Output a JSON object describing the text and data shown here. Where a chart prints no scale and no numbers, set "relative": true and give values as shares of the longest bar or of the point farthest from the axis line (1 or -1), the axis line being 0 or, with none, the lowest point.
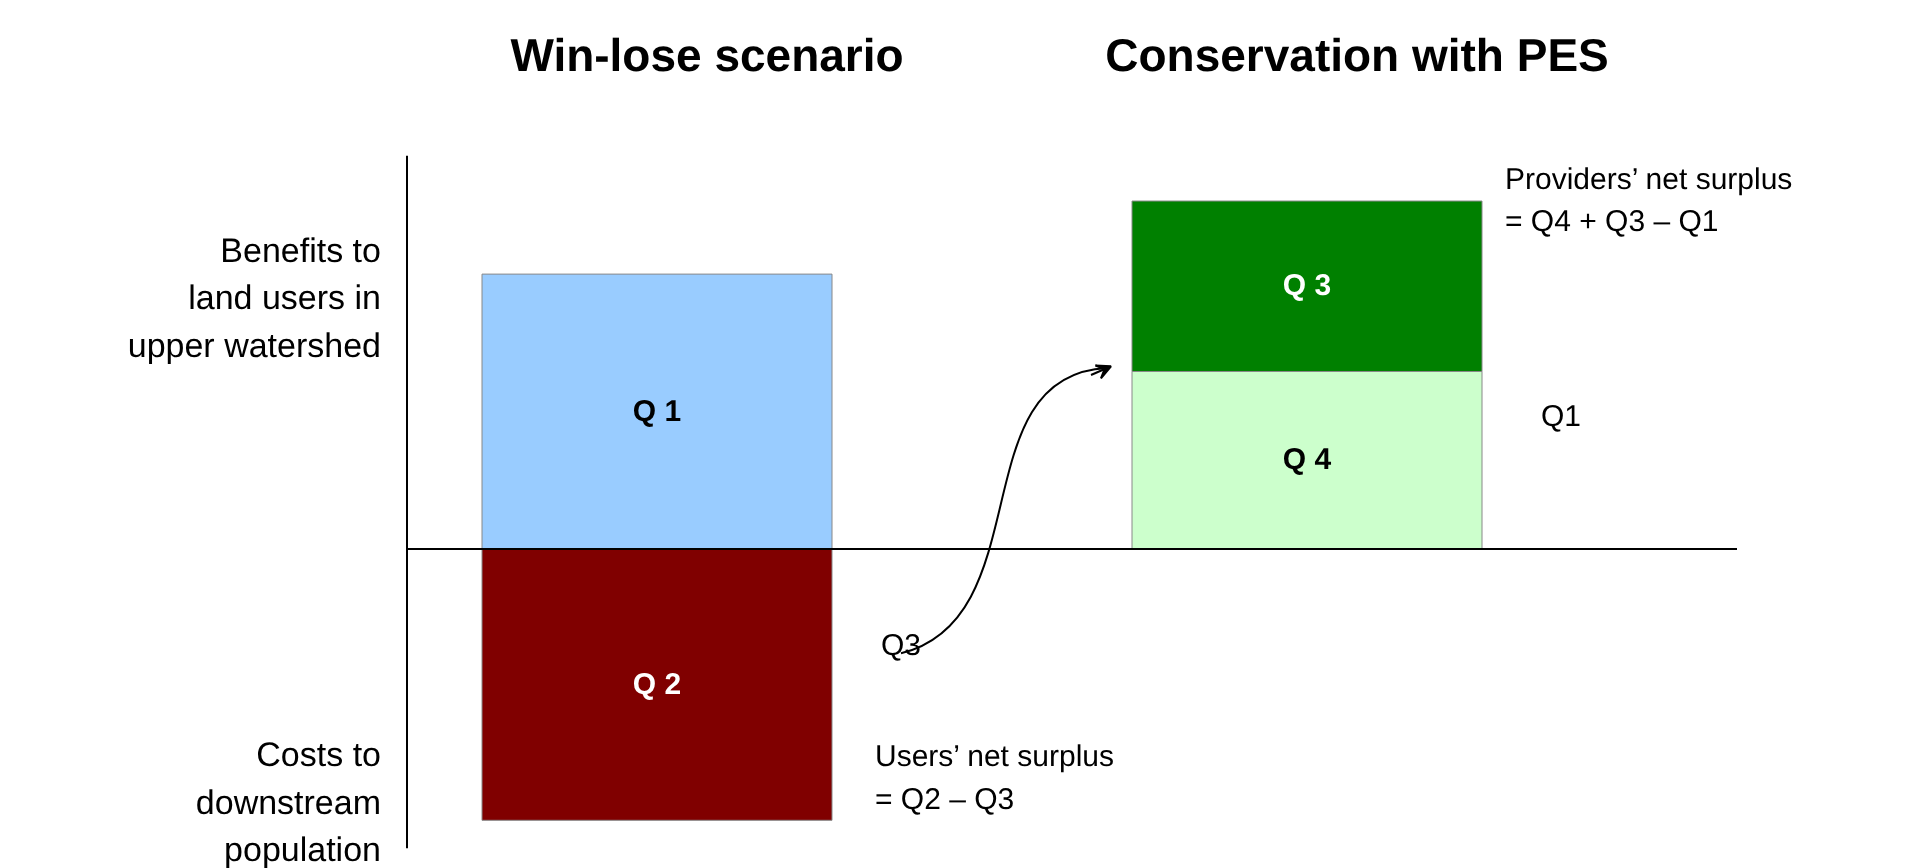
{
  "chart_data": {
    "type": "bar",
    "stacked": true,
    "relative": true,
    "categories": [
      "Win-lose scenario",
      "Conservation with PES"
    ],
    "series": [
      {
        "name": "Q 1",
        "color": "#99ccff",
        "values": [
          0.79,
          null
        ]
      },
      {
        "name": "Q 2",
        "color": "#800000",
        "values": [
          -0.78,
          null
        ]
      },
      {
        "name": "Q 4",
        "color": "#ccffcc",
        "values": [
          null,
          0.51
        ]
      },
      {
        "name": "Q 3",
        "color": "#008000",
        "values": [
          null,
          0.49
        ]
      }
    ],
    "annotations": [
      "Benefits to\nland users in\nupper watershed",
      "Costs to\ndownstream\npopulation",
      "Q3",
      "Users’ net surplus\n= Q2 – Q3",
      "Providers’ net surplus\n= Q4 + Q3 – Q1",
      "Q1"
    ]
  }
}
